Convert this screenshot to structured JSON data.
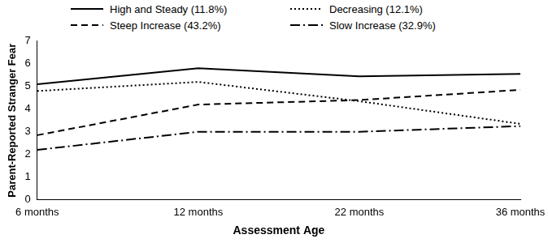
{
  "chart_data": {
    "type": "line",
    "x_label": "Assessment Age",
    "y_label": "Parent-Reported Stranger Fear",
    "categories": [
      "6 months",
      "12 months",
      "22 months",
      "36 months"
    ],
    "series": [
      {
        "name": "High and Steady (11.8%)",
        "color": "#000000",
        "line_style": "solid",
        "values": [
          5.1,
          5.8,
          5.45,
          5.55
        ]
      },
      {
        "name": "Decreasing (12.1%)",
        "color": "#000000",
        "line_style": "dotted",
        "values": [
          4.8,
          5.2,
          4.35,
          3.35
        ]
      },
      {
        "name": "Steep Increase (43.2%)",
        "color": "#000000",
        "line_style": "dashed",
        "values": [
          2.85,
          4.2,
          4.4,
          4.85
        ]
      },
      {
        "name": "Slow Increase (32.9%)",
        "color": "#000000",
        "line_style": "dashdot",
        "values": [
          2.2,
          3.0,
          3.0,
          3.25
        ]
      }
    ],
    "ylim": [
      0,
      7
    ],
    "yticks": [
      0,
      1,
      2,
      3,
      4,
      5,
      6,
      7
    ],
    "grid": false,
    "legend": "top",
    "marker": "none"
  }
}
